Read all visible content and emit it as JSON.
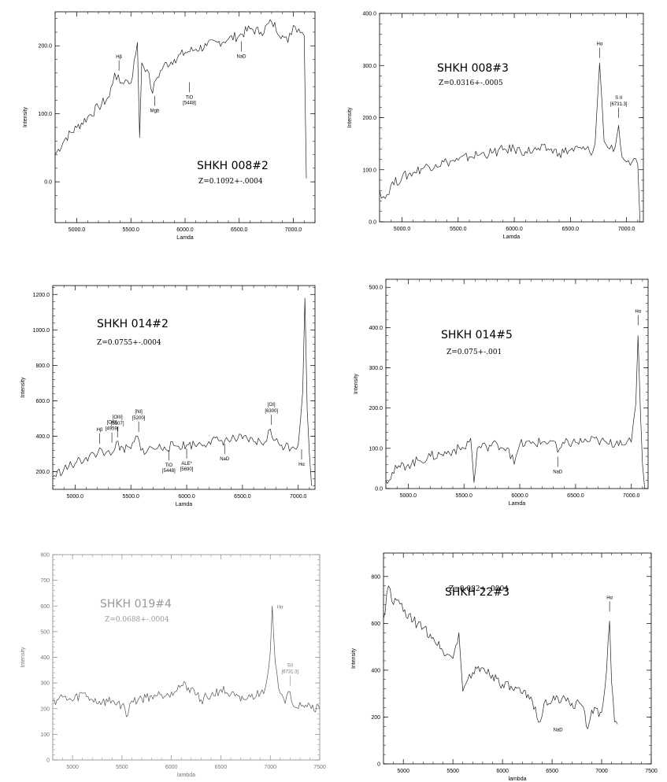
{
  "chart_data": [
    {
      "type": "line",
      "title": "SHKH  008#2",
      "subtitle": "Z=0.1092+-.0004",
      "xlabel": "Lamda",
      "ylabel": "Intensity",
      "xlim": [
        4800,
        7200
      ],
      "ylim": [
        -60,
        250
      ],
      "xticks": [
        5000,
        5500,
        6000,
        6500,
        7000
      ],
      "yticks": [
        0,
        100,
        200
      ],
      "xtick_labels": [
        "5000.0",
        "5500.0",
        "6000.0",
        "6500.0",
        "7000.0"
      ],
      "ytick_labels": [
        "0.0",
        "100.0",
        "200.0"
      ],
      "style": "dark",
      "series": [
        {
          "x": [
            4800,
            4900,
            5000,
            5100,
            5200,
            5300,
            5350,
            5400,
            5450,
            5500,
            5560,
            5580,
            5600,
            5650,
            5700,
            5730,
            5800,
            5900,
            6000,
            6100,
            6200,
            6300,
            6400,
            6500,
            6600,
            6700,
            6800,
            6900,
            6950,
            7000,
            7050,
            7080,
            7100,
            7120
          ],
          "y": [
            40,
            65,
            80,
            95,
            110,
            125,
            160,
            145,
            150,
            145,
            205,
            65,
            175,
            165,
            130,
            150,
            170,
            180,
            190,
            195,
            200,
            205,
            210,
            215,
            225,
            220,
            235,
            215,
            205,
            230,
            225,
            220,
            215,
            5
          ]
        }
      ],
      "line_labels": [
        {
          "x": 5390,
          "y": 160,
          "text": "Hβ",
          "position": "above"
        },
        {
          "x": 5720,
          "y": 130,
          "text": "Mgb",
          "position": "below"
        },
        {
          "x": 6040,
          "y": 150,
          "text": "TiO",
          "text2": "[5448]",
          "position": "below"
        },
        {
          "x": 6520,
          "y": 210,
          "text": "NaD",
          "position": "below"
        }
      ]
    },
    {
      "type": "line",
      "title": "SHKH  008#3",
      "subtitle": "Z=0.0316+-.0005",
      "xlabel": "Lamda",
      "ylabel": "Intensity",
      "xlim": [
        4800,
        7150
      ],
      "ylim": [
        0,
        400
      ],
      "xticks": [
        5000,
        5500,
        6000,
        6500,
        7000
      ],
      "yticks": [
        0,
        100,
        200,
        300,
        400
      ],
      "xtick_labels": [
        "5000.0",
        "5500.0",
        "6000.0",
        "6500.0",
        "7000.0"
      ],
      "ytick_labels": [
        "0.0",
        "100.0",
        "200.0",
        "300.0",
        "400.0"
      ],
      "style": "dark",
      "series": [
        {
          "x": [
            4800,
            4850,
            4900,
            5000,
            5100,
            5200,
            5300,
            5400,
            5500,
            5600,
            5700,
            5800,
            5900,
            6000,
            6100,
            6200,
            6300,
            6400,
            6500,
            6600,
            6700,
            6720,
            6760,
            6800,
            6850,
            6900,
            6930,
            6960,
            7000,
            7050,
            7100,
            7120
          ],
          "y": [
            60,
            45,
            70,
            85,
            95,
            105,
            110,
            115,
            118,
            125,
            130,
            132,
            138,
            140,
            135,
            138,
            140,
            132,
            138,
            140,
            135,
            150,
            305,
            155,
            140,
            145,
            185,
            125,
            115,
            115,
            110,
            0
          ]
        }
      ],
      "line_labels": [
        {
          "x": 6760,
          "y": 310,
          "text": "Hα",
          "position": "above"
        },
        {
          "x": 6930,
          "y": 195,
          "text": "S II",
          "text2": "[6731.3]",
          "position": "above"
        }
      ]
    },
    {
      "type": "line",
      "title": "SHKH  014#2",
      "subtitle": "Z=0.0755+-.0004",
      "xlabel": "Lamda",
      "ylabel": "Intensity",
      "xlim": [
        4800,
        7150
      ],
      "ylim": [
        100,
        1250
      ],
      "xticks": [
        5000,
        5500,
        6000,
        6500,
        7000
      ],
      "yticks": [
        200,
        400,
        600,
        800,
        1000,
        1200
      ],
      "xtick_labels": [
        "5000.0",
        "5500.0",
        "6000.0",
        "6500.0",
        "7000.0"
      ],
      "ytick_labels": [
        "200.0",
        "400.0",
        "600.0",
        "800.0",
        "1000.0",
        "1200.0"
      ],
      "style": "dark",
      "series": [
        {
          "x": [
            4800,
            4900,
            5000,
            5100,
            5200,
            5220,
            5260,
            5300,
            5340,
            5370,
            5400,
            5500,
            5560,
            5590,
            5700,
            5800,
            5900,
            6000,
            6100,
            6200,
            6300,
            6400,
            6500,
            6600,
            6700,
            6750,
            6780,
            6850,
            6950,
            7000,
            7040,
            7060,
            7080,
            7100,
            7120
          ],
          "y": [
            170,
            215,
            245,
            280,
            300,
            335,
            290,
            320,
            310,
            370,
            320,
            330,
            400,
            320,
            330,
            340,
            345,
            350,
            355,
            370,
            375,
            380,
            385,
            370,
            365,
            440,
            375,
            350,
            340,
            350,
            650,
            1180,
            550,
            300,
            120
          ]
        }
      ],
      "line_labels": [
        {
          "x": 5220,
          "y": 345,
          "text": "Hβ",
          "position": "above"
        },
        {
          "x": 5330,
          "y": 350,
          "text": "[OIII]",
          "text2": "[4959]",
          "position": "above"
        },
        {
          "x": 5380,
          "y": 380,
          "text": "[OIII]",
          "text2": "[5007]",
          "position": "above"
        },
        {
          "x": 5570,
          "y": 410,
          "text": "[NI]",
          "text2": "[5200]",
          "position": "above"
        },
        {
          "x": 6760,
          "y": 450,
          "text": "[OI]",
          "text2": "[6300]",
          "position": "above"
        },
        {
          "x": 5840,
          "y": 335,
          "text": "TiO",
          "text2": "[5448]",
          "position": "below"
        },
        {
          "x": 6000,
          "y": 345,
          "text": "ALE*",
          "text2": "[5690]",
          "position": "below"
        },
        {
          "x": 6340,
          "y": 370,
          "text": "NaD",
          "position": "below"
        },
        {
          "x": 7030,
          "y": 340,
          "text": "Hα",
          "position": "below"
        }
      ]
    },
    {
      "type": "line",
      "title": "SHKH  014#5",
      "subtitle": "Z=0.075+-.001",
      "xlabel": "Lamda",
      "ylabel": "Intensity",
      "xlim": [
        4800,
        7150
      ],
      "ylim": [
        0,
        520
      ],
      "xticks": [
        5000,
        5500,
        6000,
        6500,
        7000
      ],
      "yticks": [
        0,
        100,
        200,
        300,
        400,
        500
      ],
      "xtick_labels": [
        "5000.0",
        "5500.0",
        "6000.0",
        "6500.0",
        "7000.0"
      ],
      "ytick_labels": [
        "0.0",
        "100.0",
        "200.0",
        "300.0",
        "400.0",
        "500.0"
      ],
      "style": "dark",
      "series": [
        {
          "x": [
            4800,
            4900,
            5000,
            5100,
            5200,
            5300,
            5400,
            5500,
            5560,
            5590,
            5620,
            5700,
            5800,
            5900,
            5950,
            6000,
            6100,
            6200,
            6300,
            6340,
            6400,
            6500,
            6600,
            6700,
            6800,
            6900,
            6950,
            7000,
            7040,
            7060,
            7080,
            7100,
            7120
          ],
          "y": [
            20,
            50,
            60,
            70,
            80,
            85,
            95,
            100,
            125,
            15,
            100,
            105,
            110,
            100,
            60,
            110,
            112,
            115,
            118,
            90,
            112,
            115,
            118,
            120,
            110,
            120,
            110,
            115,
            210,
            380,
            200,
            60,
            0
          ]
        }
      ],
      "line_labels": [
        {
          "x": 7060,
          "y": 400,
          "text": "Hα",
          "position": "above"
        },
        {
          "x": 6340,
          "y": 85,
          "text": "NaD",
          "position": "below"
        }
      ]
    },
    {
      "type": "line",
      "title": "SHKH   019#4",
      "subtitle": "Z=0.0688+-.0004",
      "xlabel": "lambda",
      "ylabel": "Intensity",
      "xlim": [
        4800,
        7500
      ],
      "ylim": [
        0,
        800
      ],
      "xticks": [
        5000,
        5500,
        6000,
        6500,
        7000,
        7500
      ],
      "yticks": [
        0,
        100,
        200,
        300,
        400,
        500,
        600,
        700,
        800
      ],
      "xtick_labels": [
        "5000",
        "5500",
        "6000",
        "6500",
        "7000",
        "7500"
      ],
      "ytick_labels": [
        "0",
        "100",
        "200",
        "300",
        "400",
        "500",
        "600",
        "700",
        "800"
      ],
      "style": "gray",
      "series": [
        {
          "x": [
            4800,
            4900,
            5000,
            5100,
            5200,
            5300,
            5400,
            5500,
            5560,
            5600,
            5700,
            5800,
            5900,
            6000,
            6100,
            6200,
            6300,
            6400,
            6500,
            6600,
            6700,
            6800,
            6900,
            6950,
            7000,
            7020,
            7050,
            7100,
            7150,
            7200,
            7250,
            7300,
            7400,
            7500
          ],
          "y": [
            230,
            245,
            230,
            260,
            235,
            225,
            230,
            215,
            175,
            230,
            240,
            250,
            255,
            265,
            290,
            280,
            235,
            250,
            275,
            255,
            230,
            245,
            260,
            280,
            420,
            600,
            380,
            260,
            220,
            265,
            205,
            225,
            215,
            200
          ]
        }
      ],
      "line_labels": [
        {
          "x": 7020,
          "y": 590,
          "text": "Hα",
          "position": "right"
        },
        {
          "x": 7200,
          "y": 280,
          "text": "SII",
          "text2": "[6731.3]",
          "position": "above"
        }
      ]
    },
    {
      "type": "line",
      "title": "SHKH  22#3",
      "subtitle": "Z=0.082+-.0004",
      "xlabel": "lambda",
      "ylabel": "Intensity",
      "xlim": [
        4800,
        7500
      ],
      "ylim": [
        0,
        900
      ],
      "xticks": [
        5000,
        5500,
        6000,
        6500,
        7000,
        7500
      ],
      "yticks": [
        0,
        200,
        400,
        600,
        800
      ],
      "xtick_labels": [
        "5000",
        "5500",
        "6000",
        "6500",
        "7000",
        "7500"
      ],
      "ytick_labels": [
        "0",
        "200",
        "400",
        "600",
        "800"
      ],
      "style": "dark",
      "series": [
        {
          "x": [
            4800,
            4850,
            4900,
            4950,
            5000,
            5100,
            5200,
            5300,
            5400,
            5500,
            5560,
            5600,
            5650,
            5700,
            5800,
            5900,
            6000,
            6100,
            6200,
            6300,
            6380,
            6420,
            6500,
            6600,
            6700,
            6800,
            6860,
            6900,
            7000,
            7050,
            7080,
            7100,
            7130,
            7160
          ],
          "y": [
            620,
            760,
            680,
            700,
            650,
            610,
            580,
            540,
            480,
            450,
            560,
            310,
            360,
            390,
            410,
            380,
            340,
            320,
            300,
            270,
            180,
            260,
            270,
            280,
            260,
            250,
            150,
            230,
            220,
            400,
            610,
            350,
            180,
            170
          ]
        }
      ],
      "line_labels": [
        {
          "x": 7080,
          "y": 640,
          "text": "Hα",
          "position": "above"
        },
        {
          "x": 6560,
          "y": 140,
          "text": "NaD",
          "position": "below-free"
        }
      ]
    }
  ]
}
